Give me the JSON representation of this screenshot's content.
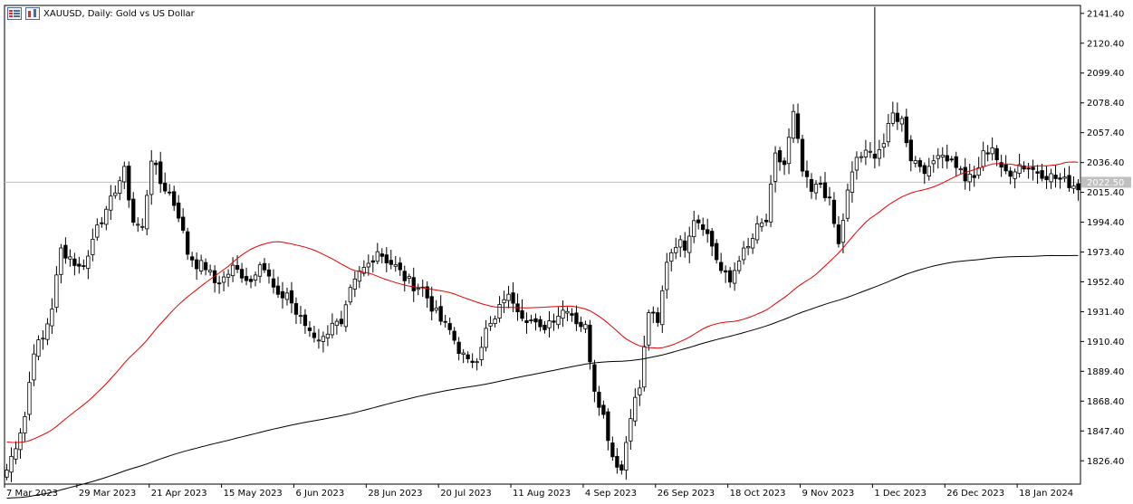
{
  "window": {
    "title": "XAUUSD, Daily:  Gold vs US Dollar",
    "icons": [
      "list-view-icon",
      "bar-chart-icon"
    ]
  },
  "colors": {
    "background": "#ffffff",
    "frame": "#000000",
    "candle": "#000000",
    "ma_fast": "#e60000",
    "ma_slow": "#000000",
    "price_line": "#c0c0c0",
    "price_tag_bg": "#c0c0c0",
    "price_tag_text": "#ffffff"
  },
  "chart_data": {
    "type": "candlestick",
    "title": "XAUUSD, Daily:  Gold vs US Dollar",
    "xlabel": "",
    "ylabel": "",
    "ylim": [
      1810.0,
      2147.0
    ],
    "grid": false,
    "current_price": "2022.50",
    "y_ticks": [
      "2141.40",
      "2120.40",
      "2099.40",
      "2078.40",
      "2057.40",
      "2036.40",
      "2015.40",
      "1994.40",
      "1973.40",
      "1952.40",
      "1931.40",
      "1910.40",
      "1889.40",
      "1868.40",
      "1847.40",
      "1826.40"
    ],
    "x_ticks": [
      "7 Mar 2023",
      "29 Mar 2023",
      "21 Apr 2023",
      "15 May 2023",
      "6 Jun 2023",
      "28 Jun 2023",
      "20 Jul 2023",
      "11 Aug 2023",
      "4 Sep 2023",
      "26 Sep 2023",
      "18 Oct 2023",
      "9 Nov 2023",
      "1 Dec 2023",
      "26 Dec 2023",
      "18 Jan 2024"
    ],
    "x_tick_index": [
      0,
      16,
      32,
      48,
      64,
      80,
      96,
      112,
      128,
      144,
      160,
      176,
      192,
      208,
      224
    ],
    "anchors": [
      [
        0,
        1820
      ],
      [
        2,
        1838
      ],
      [
        4,
        1858
      ],
      [
        6,
        1905
      ],
      [
        8,
        1912
      ],
      [
        10,
        1935
      ],
      [
        12,
        1975
      ],
      [
        14,
        1970
      ],
      [
        16,
        1962
      ],
      [
        18,
        1970
      ],
      [
        20,
        1995
      ],
      [
        22,
        2000
      ],
      [
        24,
        2018
      ],
      [
        26,
        2030
      ],
      [
        28,
        1995
      ],
      [
        30,
        1990
      ],
      [
        32,
        2040
      ],
      [
        34,
        2022
      ],
      [
        36,
        2015
      ],
      [
        38,
        2000
      ],
      [
        40,
        1973
      ],
      [
        42,
        1965
      ],
      [
        44,
        1963
      ],
      [
        46,
        1952
      ],
      [
        48,
        1955
      ],
      [
        50,
        1962
      ],
      [
        52,
        1958
      ],
      [
        54,
        1953
      ],
      [
        56,
        1968
      ],
      [
        58,
        1955
      ],
      [
        60,
        1940
      ],
      [
        62,
        1945
      ],
      [
        64,
        1930
      ],
      [
        66,
        1922
      ],
      [
        68,
        1915
      ],
      [
        70,
        1912
      ],
      [
        72,
        1925
      ],
      [
        74,
        1920
      ],
      [
        76,
        1945
      ],
      [
        78,
        1958
      ],
      [
        80,
        1965
      ],
      [
        82,
        1975
      ],
      [
        84,
        1968
      ],
      [
        86,
        1963
      ],
      [
        88,
        1955
      ],
      [
        90,
        1950
      ],
      [
        92,
        1948
      ],
      [
        94,
        1935
      ],
      [
        96,
        1925
      ],
      [
        98,
        1918
      ],
      [
        100,
        1905
      ],
      [
        102,
        1895
      ],
      [
        104,
        1900
      ],
      [
        106,
        1918
      ],
      [
        108,
        1925
      ],
      [
        110,
        1942
      ],
      [
        112,
        1940
      ],
      [
        114,
        1930
      ],
      [
        116,
        1925
      ],
      [
        118,
        1918
      ],
      [
        120,
        1925
      ],
      [
        122,
        1930
      ],
      [
        124,
        1935
      ],
      [
        126,
        1925
      ],
      [
        128,
        1920
      ],
      [
        130,
        1878
      ],
      [
        132,
        1858
      ],
      [
        134,
        1830
      ],
      [
        136,
        1820
      ],
      [
        138,
        1860
      ],
      [
        140,
        1878
      ],
      [
        142,
        1932
      ],
      [
        144,
        1922
      ],
      [
        146,
        1968
      ],
      [
        148,
        1980
      ],
      [
        150,
        1978
      ],
      [
        152,
        1998
      ],
      [
        154,
        1993
      ],
      [
        156,
        1978
      ],
      [
        158,
        1960
      ],
      [
        160,
        1952
      ],
      [
        162,
        1970
      ],
      [
        164,
        1976
      ],
      [
        166,
        1990
      ],
      [
        168,
        1995
      ],
      [
        170,
        2040
      ],
      [
        172,
        2035
      ],
      [
        174,
        2070
      ],
      [
        176,
        2030
      ],
      [
        178,
        2015
      ],
      [
        180,
        2022
      ],
      [
        182,
        2008
      ],
      [
        184,
        1978
      ],
      [
        186,
        2015
      ],
      [
        188,
        2040
      ],
      [
        190,
        2042
      ],
      [
        192,
        2043
      ],
      [
        194,
        2050
      ],
      [
        196,
        2070
      ],
      [
        198,
        2066
      ],
      [
        200,
        2040
      ],
      [
        202,
        2035
      ],
      [
        204,
        2030
      ],
      [
        206,
        2045
      ],
      [
        208,
        2040
      ],
      [
        210,
        2035
      ],
      [
        212,
        2025
      ],
      [
        214,
        2025
      ],
      [
        216,
        2042
      ],
      [
        218,
        2048
      ],
      [
        220,
        2030
      ],
      [
        222,
        2030
      ],
      [
        224,
        2035
      ]
    ],
    "candles": {
      "count": 238,
      "note": "daily OHLC candles following anchor closes"
    },
    "series": [
      {
        "name": "",
        "color": "#e60000",
        "period_days": 50
      },
      {
        "name": "",
        "color": "#000000",
        "period_days": 200
      }
    ]
  }
}
